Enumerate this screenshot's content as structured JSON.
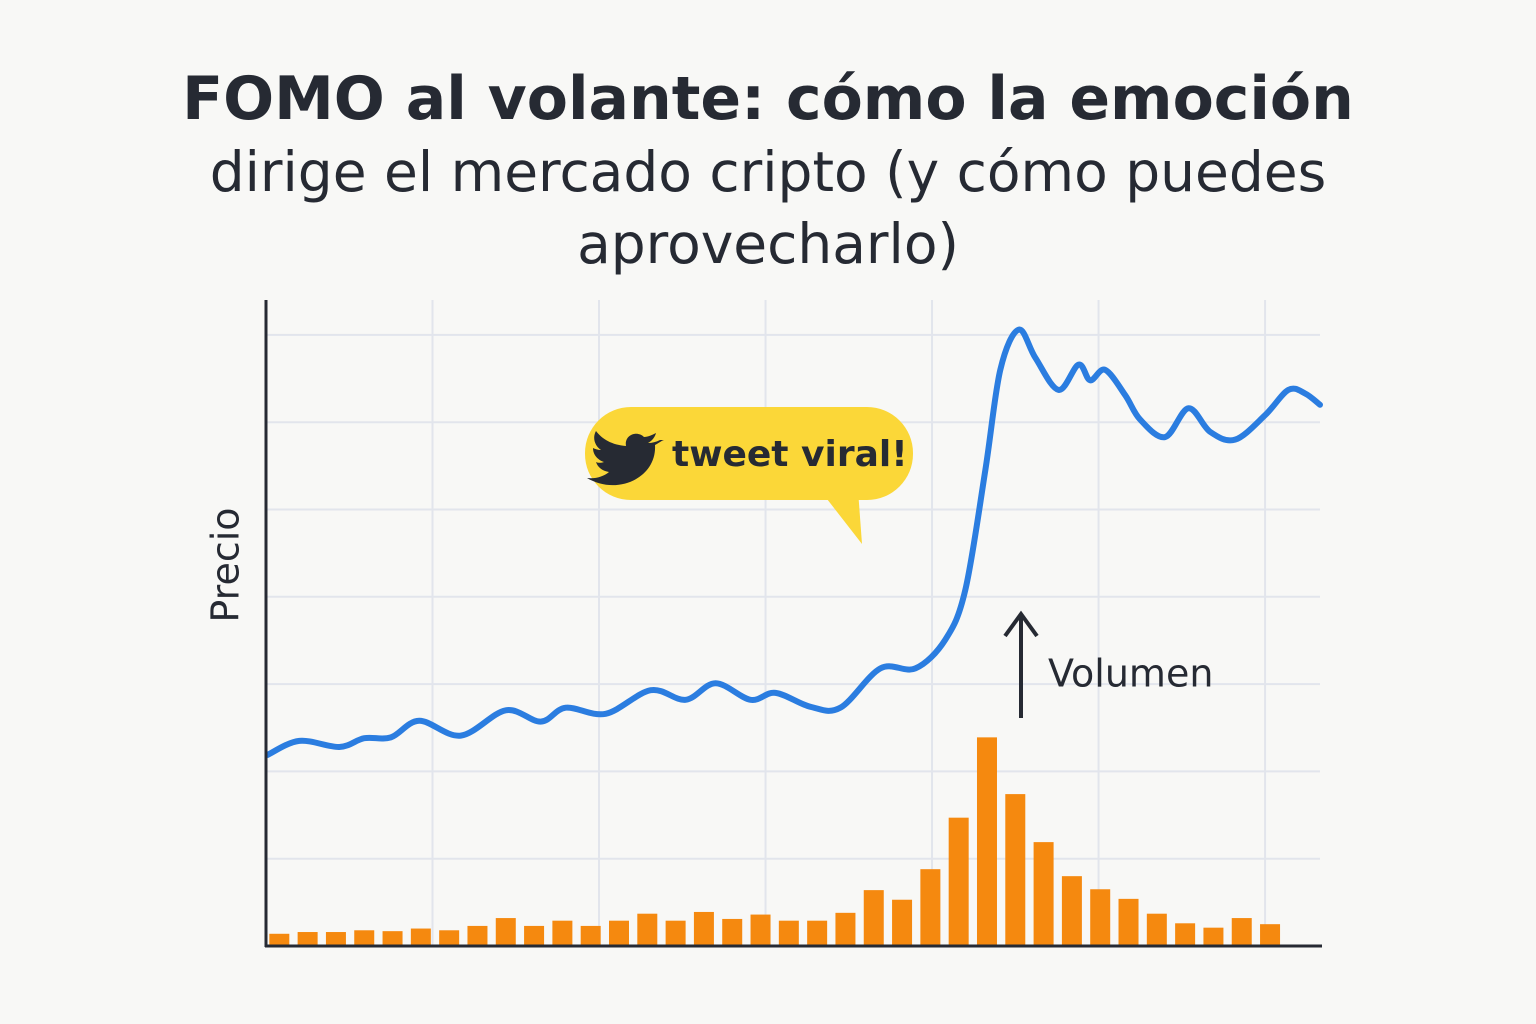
{
  "chart_data": {
    "type": "line",
    "title": "FOMO al volante: cómo la emoción",
    "subtitle": "dirige el mercado cripto (y cómo puedes aprovecharlo)",
    "y_label": "Precio",
    "annotations": [
      "tweet viral!",
      "Volumen"
    ],
    "xlim": [
      0,
      6.33
    ],
    "xticks": [
      1,
      2,
      3,
      4,
      5,
      6
    ],
    "ylim": [
      0,
      7.4
    ],
    "yticks": [
      1,
      2,
      3,
      4,
      5,
      6,
      7
    ],
    "grid": true,
    "series": [
      {
        "type": "line",
        "color": "#2b7de0",
        "x": [
          0.01,
          0.2,
          0.44,
          0.59,
          0.75,
          0.92,
          1.17,
          1.44,
          1.65,
          1.8,
          2.04,
          2.31,
          2.52,
          2.7,
          2.91,
          3.06,
          3.27,
          3.45,
          3.69,
          3.9,
          4.08,
          4.2,
          4.32,
          4.41,
          4.52,
          4.62,
          4.76,
          4.88,
          4.95,
          5.04,
          5.16,
          5.25,
          5.4,
          5.54,
          5.67,
          5.82,
          6.0,
          6.14,
          6.24,
          6.33
        ],
        "values": [
          2.19,
          2.35,
          2.28,
          2.38,
          2.39,
          2.58,
          2.41,
          2.7,
          2.57,
          2.73,
          2.66,
          2.93,
          2.82,
          3.01,
          2.82,
          2.9,
          2.74,
          2.73,
          3.18,
          3.18,
          3.51,
          4.08,
          5.45,
          6.6,
          7.06,
          6.74,
          6.37,
          6.66,
          6.48,
          6.6,
          6.31,
          6.03,
          5.83,
          6.16,
          5.89,
          5.8,
          6.08,
          6.37,
          6.33,
          6.2
        ]
      },
      {
        "type": "bar",
        "color": "#f5890f",
        "x": [
          0.08,
          0.25,
          0.42,
          0.59,
          0.76,
          0.93,
          1.1,
          1.27,
          1.44,
          1.61,
          1.78,
          1.95,
          2.12,
          2.29,
          2.46,
          2.63,
          2.8,
          2.97,
          3.14,
          3.31,
          3.48,
          3.65,
          3.82,
          3.99,
          4.16,
          4.33,
          4.5,
          4.67,
          4.84,
          5.01,
          5.18,
          5.35,
          5.52,
          5.69,
          5.86,
          6.03
        ],
        "values": [
          0.14,
          0.16,
          0.16,
          0.18,
          0.17,
          0.2,
          0.18,
          0.23,
          0.32,
          0.23,
          0.29,
          0.23,
          0.29,
          0.37,
          0.29,
          0.39,
          0.31,
          0.36,
          0.29,
          0.29,
          0.38,
          0.64,
          0.53,
          0.88,
          1.47,
          2.39,
          1.74,
          1.19,
          0.8,
          0.65,
          0.54,
          0.37,
          0.26,
          0.21,
          0.32,
          0.25
        ]
      }
    ]
  }
}
